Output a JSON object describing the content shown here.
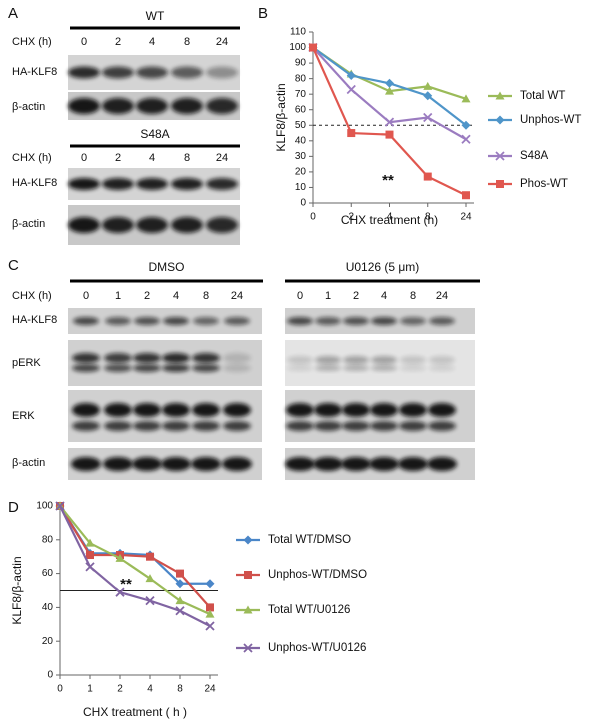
{
  "panel_labels": [
    "A",
    "B",
    "C",
    "D"
  ],
  "blot_a": {
    "groups": [
      {
        "name": "WT",
        "time_label": "CHX (h)",
        "times": [
          0,
          2,
          4,
          8,
          24
        ],
        "rows": [
          "HA-KLF8",
          "β-actin"
        ]
      },
      {
        "name": "S48A",
        "time_label": "CHX (h)",
        "times": [
          0,
          2,
          4,
          8,
          24
        ],
        "rows": [
          "HA-KLF8",
          "β-actin"
        ]
      }
    ]
  },
  "blot_c": {
    "time_label": "CHX (h)",
    "rows": [
      "HA-KLF8",
      "pERK",
      "ERK",
      "β-actin"
    ],
    "groups": [
      {
        "name": "DMSO",
        "times": [
          0,
          1,
          2,
          4,
          8,
          24
        ]
      },
      {
        "name": "U0126 (5 μm)",
        "times": [
          0,
          1,
          2,
          4,
          8,
          24
        ]
      }
    ]
  },
  "chart_data": [
    {
      "type": "line",
      "xlabel": "CHX treatment (h)",
      "ylabel": "KLF8/β-actin",
      "categories": [
        0,
        2,
        4,
        8,
        24
      ],
      "ylim": [
        0,
        110
      ],
      "yticks": [
        0,
        10,
        20,
        30,
        40,
        50,
        60,
        70,
        80,
        90,
        100,
        110
      ],
      "reference_line": 50,
      "reference_style": "dashed",
      "annotation": "**",
      "legend": "right",
      "series": [
        {
          "name": "Total WT",
          "color": "#9bbb59",
          "marker": "triangle",
          "values": [
            100,
            83,
            72,
            75,
            67
          ]
        },
        {
          "name": "Unphos-WT",
          "color": "#4f95c9",
          "marker": "diamond",
          "values": [
            100,
            82,
            77,
            69,
            50
          ]
        },
        {
          "name": "S48A",
          "color": "#9b7cc0",
          "marker": "x",
          "values": [
            100,
            73,
            52,
            55,
            41
          ]
        },
        {
          "name": "Phos-WT",
          "color": "#e0574f",
          "marker": "square",
          "values": [
            100,
            45,
            44,
            17,
            5
          ]
        }
      ]
    },
    {
      "type": "line",
      "xlabel": "CHX treatment ( h )",
      "ylabel": "KLF8/β-actin",
      "categories": [
        0,
        1,
        2,
        4,
        8,
        24
      ],
      "ylim": [
        0,
        100
      ],
      "yticks": [
        0,
        20,
        40,
        60,
        80,
        100
      ],
      "reference_line": 50,
      "reference_style": "solid",
      "annotation": "**",
      "legend": "right",
      "series": [
        {
          "name": "Total WT/DMSO",
          "color": "#4a86c8",
          "marker": "diamond",
          "values": [
            100,
            72,
            72,
            71,
            54,
            54
          ]
        },
        {
          "name": "Unphos-WT/DMSO",
          "color": "#d0504b",
          "marker": "square",
          "values": [
            100,
            71,
            71,
            70,
            60,
            40
          ]
        },
        {
          "name": "Total WT/U0126",
          "color": "#9bbb59",
          "marker": "triangle",
          "values": [
            100,
            78,
            69,
            57,
            44,
            36
          ]
        },
        {
          "name": "Unphos-WT/U0126",
          "color": "#8064a2",
          "marker": "x",
          "values": [
            100,
            64,
            49,
            44,
            38,
            29
          ]
        }
      ]
    }
  ]
}
